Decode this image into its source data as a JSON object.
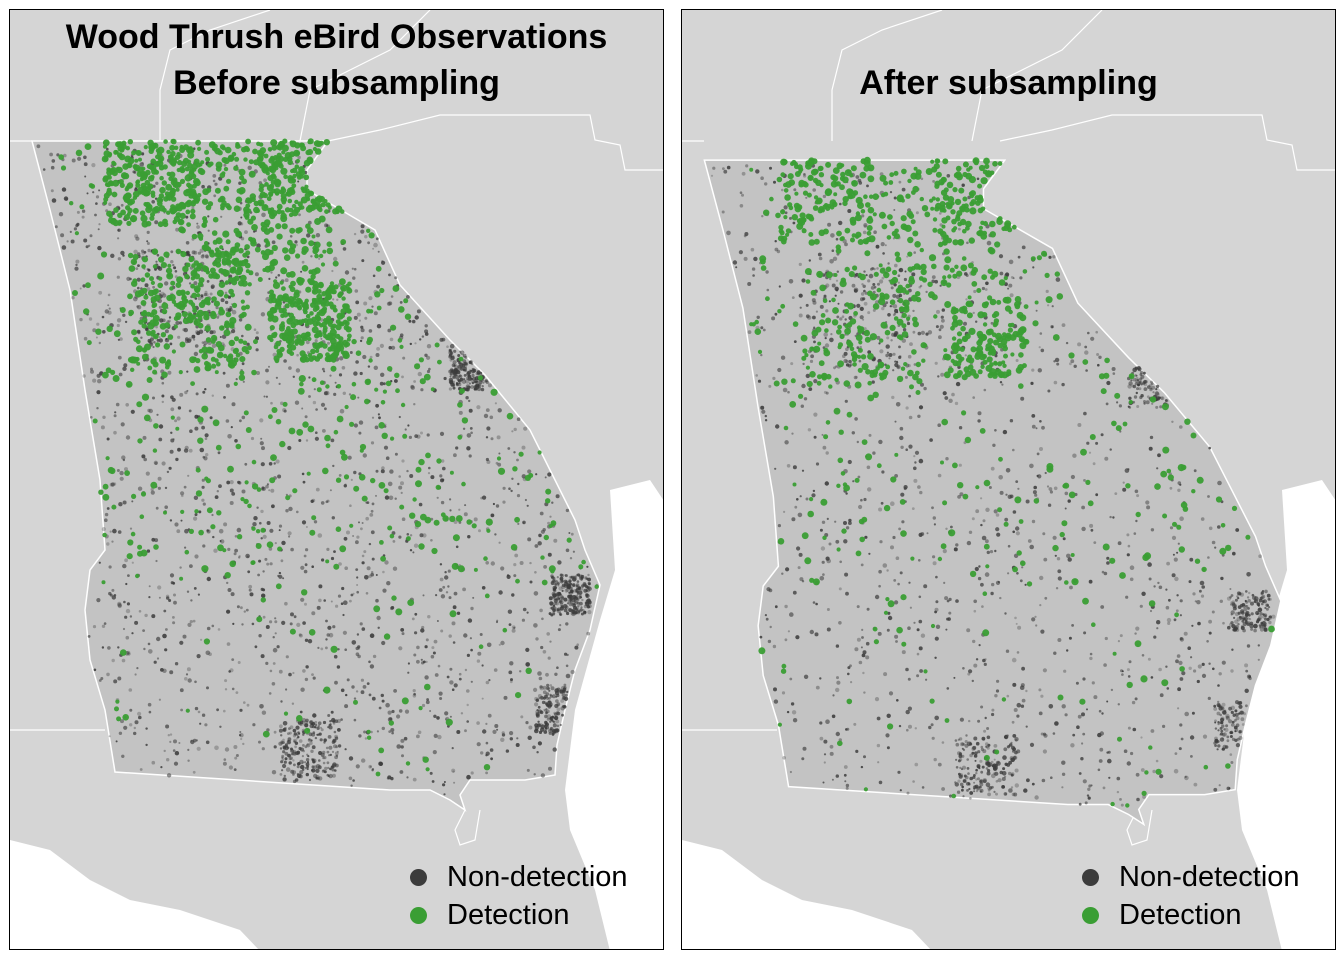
{
  "colors": {
    "background_land": "#d5d5d5",
    "state_fill": "#c3c3c3",
    "water": "#ffffff",
    "border": "#ffffff",
    "nondetection": "#3c3c3c",
    "detection": "#3a9e34"
  },
  "panels": [
    {
      "title_lines": [
        "Wood Thrush eBird Observations",
        "Before subsampling"
      ],
      "legend": {
        "items": [
          {
            "label": "Non-detection",
            "color": "#3c3c3c"
          },
          {
            "label": "Detection",
            "color": "#3a9e34"
          }
        ]
      }
    },
    {
      "title_lines": [
        "",
        "After subsampling"
      ],
      "legend": {
        "items": [
          {
            "label": "Non-detection",
            "color": "#3c3c3c"
          },
          {
            "label": "Detection",
            "color": "#3a9e34"
          }
        ]
      }
    }
  ]
}
